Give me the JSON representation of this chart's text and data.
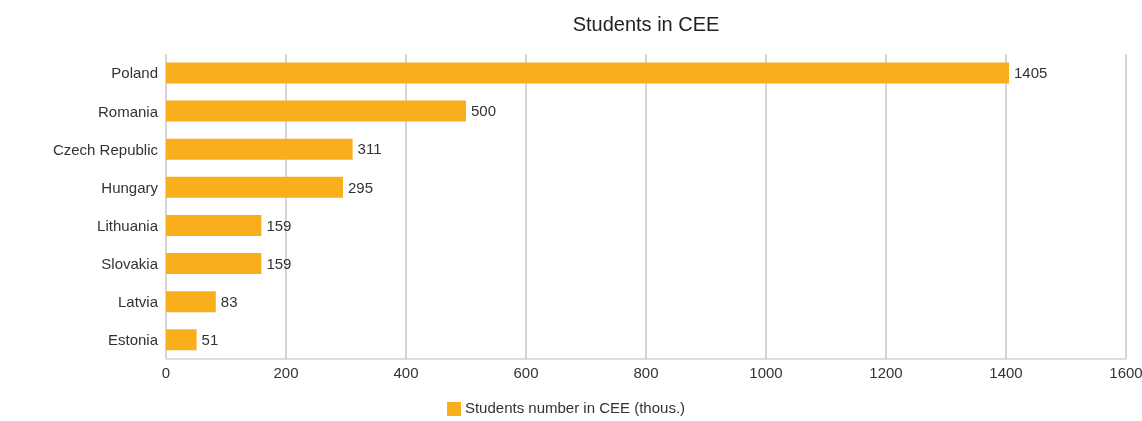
{
  "chart_data": {
    "type": "bar",
    "title": "Students in CEE",
    "orientation": "horizontal",
    "categories": [
      "Poland",
      "Romania",
      "Czech Republic",
      "Hungary",
      "Lithuania",
      "Slovakia",
      "Latvia",
      "Estonia"
    ],
    "series": [
      {
        "name": "Students number in CEE (thous.)",
        "color": "#f9ae1b",
        "values": [
          1405,
          500,
          311,
          295,
          159,
          159,
          83,
          51
        ]
      }
    ],
    "xlim": [
      0,
      1600
    ],
    "xticks": [
      0,
      200,
      400,
      600,
      800,
      1000,
      1200,
      1400,
      1600
    ],
    "grid": "x",
    "legend": "bottom",
    "data_labels": true
  }
}
